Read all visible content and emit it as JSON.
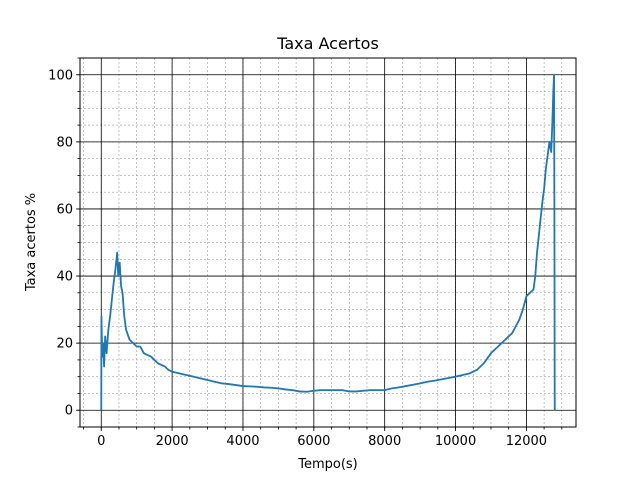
{
  "chart_data": {
    "type": "line",
    "title": "Taxa Acertos",
    "xlabel": "Tempo(s)",
    "ylabel": "Taxa acertos %",
    "xlim": [
      -600,
      13400
    ],
    "ylim": [
      -5,
      105
    ],
    "xticks": [
      0,
      2000,
      4000,
      6000,
      8000,
      10000,
      12000
    ],
    "yticks": [
      0,
      20,
      40,
      60,
      80,
      100
    ],
    "x_minor_step": 500,
    "y_minor_step": 5,
    "grid": {
      "major": true,
      "minor": true,
      "major_color": "#000000",
      "minor_color": "#888888"
    },
    "series": [
      {
        "color": "#1f77b4",
        "points": [
          [
            0,
            0
          ],
          [
            5,
            28
          ],
          [
            15,
            22
          ],
          [
            30,
            16
          ],
          [
            50,
            20
          ],
          [
            80,
            13
          ],
          [
            110,
            22
          ],
          [
            150,
            17
          ],
          [
            200,
            24
          ],
          [
            250,
            28
          ],
          [
            300,
            33
          ],
          [
            350,
            38
          ],
          [
            400,
            42
          ],
          [
            450,
            47
          ],
          [
            480,
            40
          ],
          [
            520,
            44
          ],
          [
            560,
            37
          ],
          [
            600,
            35
          ],
          [
            650,
            28
          ],
          [
            700,
            24
          ],
          [
            800,
            21
          ],
          [
            900,
            20
          ],
          [
            1000,
            19
          ],
          [
            1100,
            19
          ],
          [
            1200,
            17
          ],
          [
            1300,
            16.5
          ],
          [
            1400,
            16
          ],
          [
            1500,
            15
          ],
          [
            1600,
            14
          ],
          [
            1700,
            13.5
          ],
          [
            1800,
            13
          ],
          [
            1900,
            12
          ],
          [
            2000,
            11.5
          ],
          [
            2200,
            11
          ],
          [
            2400,
            10.5
          ],
          [
            2600,
            10
          ],
          [
            2800,
            9.5
          ],
          [
            3000,
            9
          ],
          [
            3200,
            8.5
          ],
          [
            3400,
            8
          ],
          [
            3600,
            7.8
          ],
          [
            3800,
            7.5
          ],
          [
            4000,
            7.2
          ],
          [
            4200,
            7.1
          ],
          [
            4400,
            7
          ],
          [
            4600,
            6.8
          ],
          [
            4800,
            6.7
          ],
          [
            5000,
            6.5
          ],
          [
            5200,
            6.2
          ],
          [
            5400,
            6
          ],
          [
            5600,
            5.6
          ],
          [
            5800,
            5.5
          ],
          [
            6000,
            5.8
          ],
          [
            6200,
            6
          ],
          [
            6400,
            6
          ],
          [
            6600,
            6
          ],
          [
            6800,
            6
          ],
          [
            7000,
            5.6
          ],
          [
            7200,
            5.6
          ],
          [
            7400,
            5.8
          ],
          [
            7600,
            6
          ],
          [
            7800,
            6
          ],
          [
            8000,
            6
          ],
          [
            8200,
            6.5
          ],
          [
            8400,
            6.8
          ],
          [
            8600,
            7.2
          ],
          [
            8800,
            7.6
          ],
          [
            9000,
            8
          ],
          [
            9200,
            8.5
          ],
          [
            9400,
            8.8
          ],
          [
            9600,
            9.2
          ],
          [
            9800,
            9.6
          ],
          [
            10000,
            10
          ],
          [
            10200,
            10.5
          ],
          [
            10400,
            11
          ],
          [
            10600,
            12
          ],
          [
            10800,
            14
          ],
          [
            11000,
            17
          ],
          [
            11200,
            19
          ],
          [
            11400,
            21
          ],
          [
            11600,
            23
          ],
          [
            11800,
            27
          ],
          [
            11900,
            30
          ],
          [
            12000,
            34
          ],
          [
            12100,
            35
          ],
          [
            12200,
            36
          ],
          [
            12250,
            40
          ],
          [
            12300,
            47
          ],
          [
            12350,
            52
          ],
          [
            12400,
            57
          ],
          [
            12450,
            62
          ],
          [
            12500,
            66
          ],
          [
            12550,
            72
          ],
          [
            12600,
            76
          ],
          [
            12650,
            80
          ],
          [
            12700,
            77
          ],
          [
            12730,
            85
          ],
          [
            12760,
            95
          ],
          [
            12780,
            100
          ],
          [
            12790,
            60
          ],
          [
            12800,
            0
          ]
        ]
      }
    ]
  }
}
